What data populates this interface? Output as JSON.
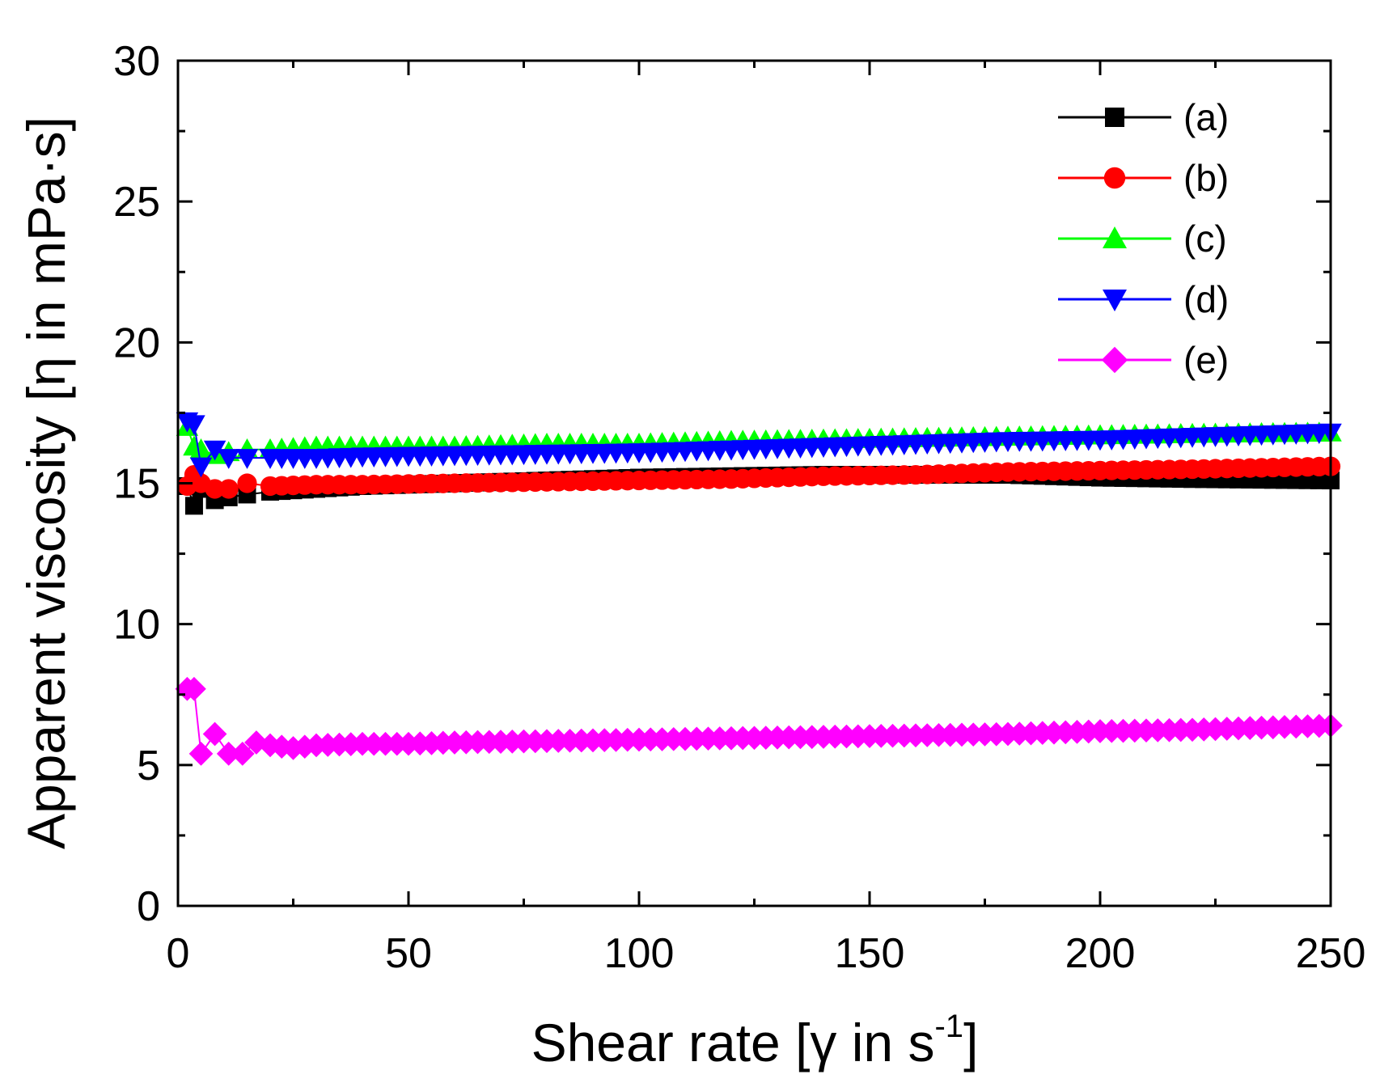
{
  "chart_data": {
    "type": "line",
    "title": "",
    "xlabel": {
      "main": "Shear rate [γ in s",
      "sup": "-1",
      "close": "]"
    },
    "ylabel": "Apparent viscosity [η in mPa·s]",
    "xlim": [
      0,
      250
    ],
    "ylim": [
      0,
      30
    ],
    "xticks": [
      0,
      50,
      100,
      150,
      200,
      250
    ],
    "yticks": [
      0,
      5,
      10,
      15,
      20,
      25,
      30
    ],
    "xtick_labels": [
      "0",
      "50",
      "100",
      "150",
      "200",
      "250"
    ],
    "ytick_labels": [
      "0",
      "5",
      "10",
      "15",
      "20",
      "25",
      "30"
    ],
    "grid": false,
    "legend_position": "top-right",
    "series": [
      {
        "name": "(a)",
        "color": "#000000",
        "marker": "square",
        "points": [
          [
            2,
            14.9
          ],
          [
            3.5,
            14.2
          ],
          [
            5,
            14.8
          ],
          [
            8,
            14.4
          ],
          [
            11,
            14.5
          ],
          [
            15,
            14.6
          ],
          [
            20,
            14.7
          ],
          [
            30,
            14.8
          ],
          [
            40,
            14.9
          ],
          [
            60,
            15.0
          ],
          [
            80,
            15.1
          ],
          [
            100,
            15.2
          ],
          [
            120,
            15.25
          ],
          [
            140,
            15.3
          ],
          [
            160,
            15.3
          ],
          [
            180,
            15.3
          ],
          [
            200,
            15.2
          ],
          [
            220,
            15.15
          ],
          [
            250,
            15.1
          ]
        ]
      },
      {
        "name": "(b)",
        "color": "#ff0000",
        "marker": "circle",
        "points": [
          [
            2,
            14.9
          ],
          [
            3.5,
            15.3
          ],
          [
            5,
            15.0
          ],
          [
            8,
            14.8
          ],
          [
            11,
            14.8
          ],
          [
            15,
            15.0
          ],
          [
            20,
            14.9
          ],
          [
            30,
            14.95
          ],
          [
            40,
            14.95
          ],
          [
            60,
            15.0
          ],
          [
            80,
            15.05
          ],
          [
            100,
            15.1
          ],
          [
            120,
            15.15
          ],
          [
            140,
            15.25
          ],
          [
            160,
            15.3
          ],
          [
            180,
            15.4
          ],
          [
            200,
            15.45
          ],
          [
            220,
            15.5
          ],
          [
            250,
            15.6
          ]
        ]
      },
      {
        "name": "(c)",
        "color": "#00ff00",
        "marker": "triangle-up",
        "points": [
          [
            2,
            17.0
          ],
          [
            3.5,
            16.3
          ],
          [
            5,
            16.2
          ],
          [
            8,
            16.0
          ],
          [
            11,
            16.1
          ],
          [
            15,
            16.2
          ],
          [
            20,
            16.2
          ],
          [
            30,
            16.3
          ],
          [
            40,
            16.3
          ],
          [
            60,
            16.3
          ],
          [
            80,
            16.4
          ],
          [
            100,
            16.4
          ],
          [
            120,
            16.5
          ],
          [
            140,
            16.55
          ],
          [
            160,
            16.6
          ],
          [
            180,
            16.65
          ],
          [
            200,
            16.7
          ],
          [
            220,
            16.75
          ],
          [
            250,
            16.8
          ]
        ]
      },
      {
        "name": "(d)",
        "color": "#0000ff",
        "marker": "triangle-down",
        "points": [
          [
            2,
            17.2
          ],
          [
            3.5,
            17.1
          ],
          [
            5,
            15.6
          ],
          [
            8,
            16.2
          ],
          [
            11,
            15.9
          ],
          [
            15,
            15.9
          ],
          [
            20,
            15.9
          ],
          [
            30,
            15.9
          ],
          [
            40,
            15.95
          ],
          [
            60,
            16.0
          ],
          [
            80,
            16.05
          ],
          [
            100,
            16.1
          ],
          [
            120,
            16.2
          ],
          [
            140,
            16.3
          ],
          [
            160,
            16.4
          ],
          [
            180,
            16.5
          ],
          [
            200,
            16.55
          ],
          [
            220,
            16.65
          ],
          [
            250,
            16.8
          ]
        ]
      },
      {
        "name": "(e)",
        "color": "#ff00ff",
        "marker": "diamond",
        "points": [
          [
            2,
            7.7
          ],
          [
            3.5,
            7.7
          ],
          [
            5,
            5.4
          ],
          [
            8,
            6.1
          ],
          [
            11,
            5.4
          ],
          [
            14,
            5.4
          ],
          [
            17,
            5.8
          ],
          [
            20,
            5.7
          ],
          [
            25,
            5.6
          ],
          [
            30,
            5.7
          ],
          [
            40,
            5.75
          ],
          [
            50,
            5.75
          ],
          [
            60,
            5.8
          ],
          [
            80,
            5.85
          ],
          [
            100,
            5.9
          ],
          [
            120,
            5.95
          ],
          [
            140,
            6.0
          ],
          [
            160,
            6.05
          ],
          [
            180,
            6.1
          ],
          [
            200,
            6.2
          ],
          [
            220,
            6.25
          ],
          [
            250,
            6.4
          ]
        ]
      }
    ]
  }
}
